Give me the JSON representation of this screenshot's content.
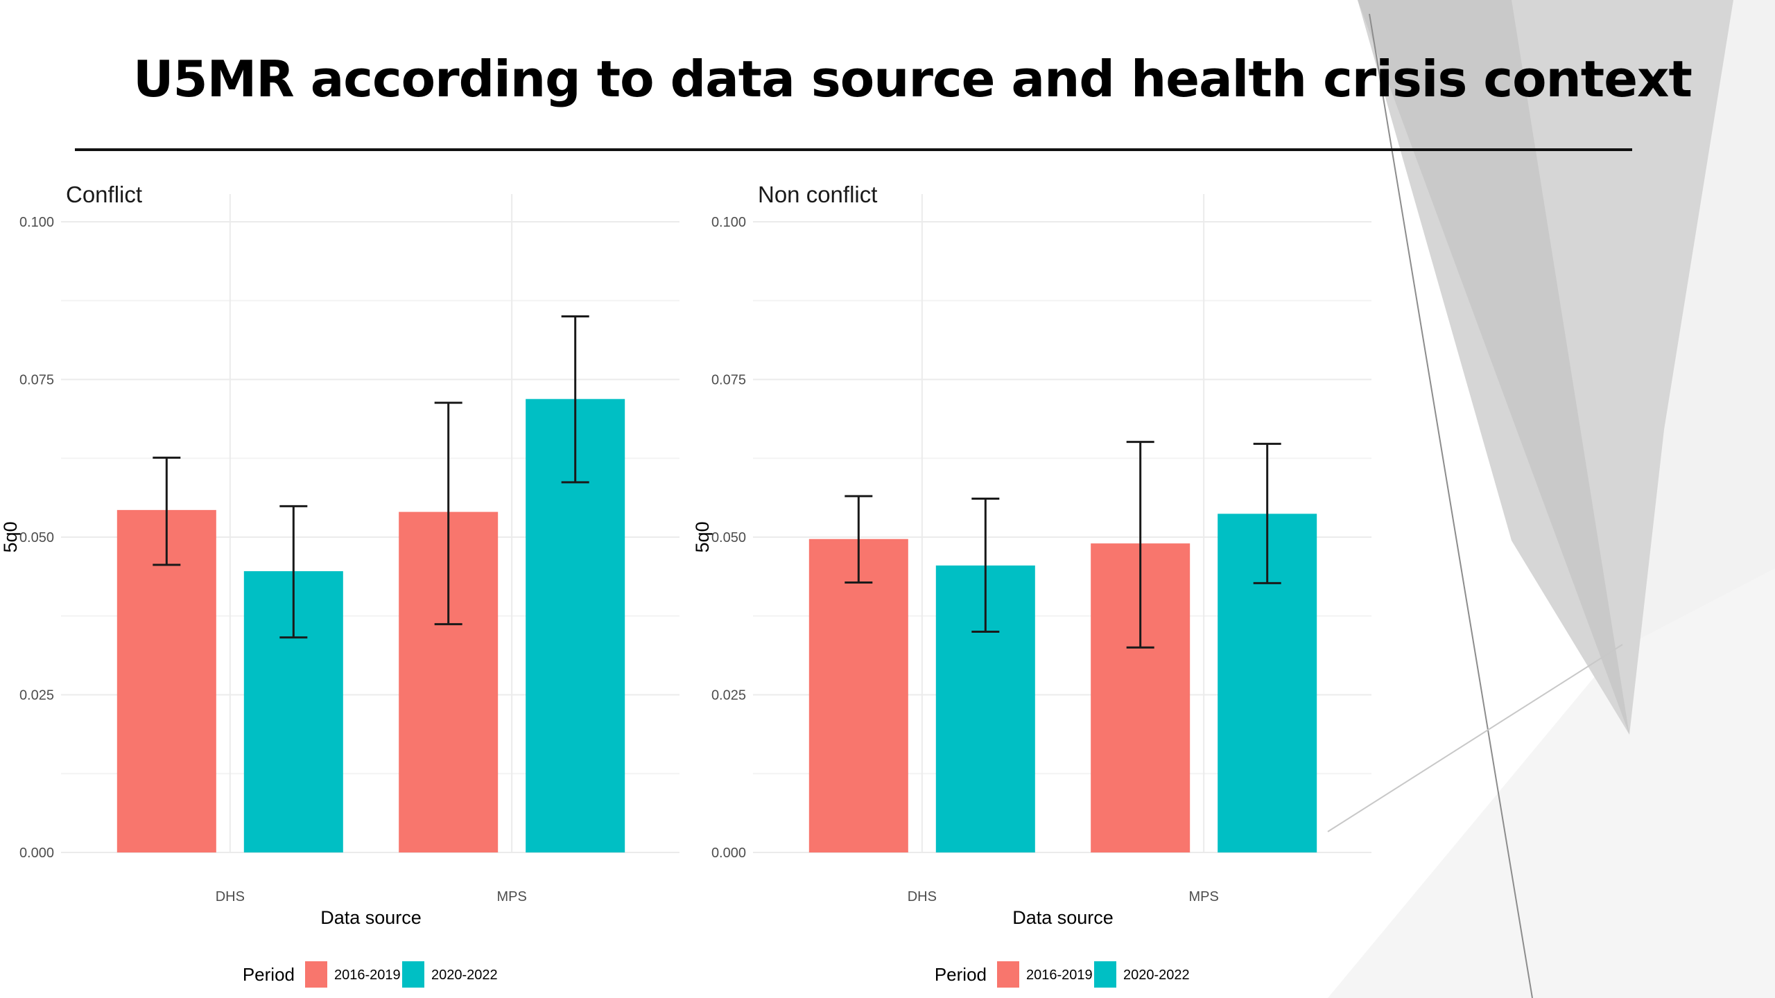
{
  "slide": {
    "title": "U5MR according to data source and health crisis context"
  },
  "colors": {
    "period_2016_2019": "#F8766D",
    "period_2020_2022": "#00BFC4",
    "grid": "#ebebeb",
    "errorbar": "#1a1a1a"
  },
  "chart_data": [
    {
      "type": "bar",
      "title": "Conflict",
      "xlabel": "Data source",
      "ylabel": "5q0",
      "categories": [
        "DHS",
        "MPS"
      ],
      "ylim": [
        0,
        0.1
      ],
      "yticks": [
        "0.000",
        "0.025",
        "0.050",
        "0.075",
        "0.100"
      ],
      "grid": true,
      "legend_position": "bottom",
      "legend_title": "Period",
      "series": [
        {
          "name": "2016-2019",
          "values": [
            0.0543,
            0.054
          ],
          "error_low": [
            0.0456,
            0.0362
          ],
          "error_high": [
            0.0626,
            0.0713
          ]
        },
        {
          "name": "2020-2022",
          "values": [
            0.0446,
            0.0719
          ],
          "error_low": [
            0.0341,
            0.0587
          ],
          "error_high": [
            0.0549,
            0.085
          ]
        }
      ]
    },
    {
      "type": "bar",
      "title": "Non conflict",
      "xlabel": "Data source",
      "ylabel": "5q0",
      "categories": [
        "DHS",
        "MPS"
      ],
      "ylim": [
        0,
        0.1
      ],
      "yticks": [
        "0.000",
        "0.025",
        "0.050",
        "0.075",
        "0.100"
      ],
      "grid": true,
      "legend_position": "bottom",
      "legend_title": "Period",
      "series": [
        {
          "name": "2016-2019",
          "values": [
            0.0497,
            0.049
          ],
          "error_low": [
            0.0428,
            0.0325
          ],
          "error_high": [
            0.0565,
            0.0651
          ]
        },
        {
          "name": "2020-2022",
          "values": [
            0.0455,
            0.0537
          ],
          "error_low": [
            0.035,
            0.0427
          ],
          "error_high": [
            0.0561,
            0.0648
          ]
        }
      ]
    }
  ]
}
